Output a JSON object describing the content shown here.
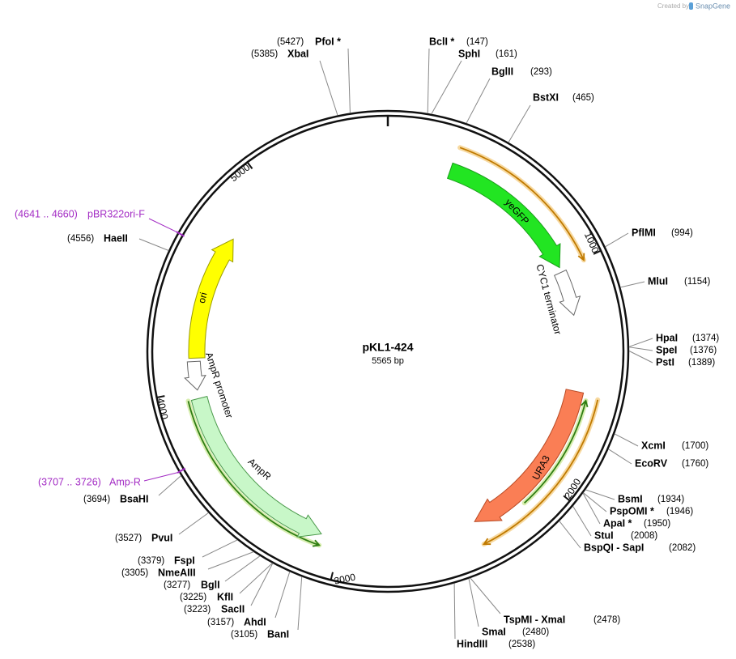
{
  "header": {
    "credit": "Created by",
    "brand": "SnapGene"
  },
  "plasmid": {
    "name": "pKL1-424",
    "length": "5565 bp"
  },
  "ruler": [
    "1000",
    "2000",
    "3000",
    "4000",
    "5000"
  ],
  "features": [
    {
      "label": "yeGFP"
    },
    {
      "label": "CYC1 terminator"
    },
    {
      "label": "URA3"
    },
    {
      "label": "AmpR"
    },
    {
      "label": "AmpR promoter"
    },
    {
      "label": "ori"
    }
  ],
  "primers": [
    {
      "range": "(4641 .. 4660)",
      "name": "pBR322ori-F"
    },
    {
      "range": "(3707 .. 3726)",
      "name": "Amp-R"
    }
  ],
  "enzymes": [
    {
      "name": "PfoI *",
      "site": "(5427)"
    },
    {
      "name": "XbaI",
      "site": "(5385)"
    },
    {
      "name": "BclI *",
      "site": "(147)"
    },
    {
      "name": "SphI",
      "site": "(161)"
    },
    {
      "name": "BglII",
      "site": "(293)"
    },
    {
      "name": "BstXI",
      "site": "(465)"
    },
    {
      "name": "PflMI",
      "site": "(994)"
    },
    {
      "name": "MluI",
      "site": "(1154)"
    },
    {
      "name": "HpaI",
      "site": "(1374)"
    },
    {
      "name": "SpeI",
      "site": "(1376)"
    },
    {
      "name": "PstI",
      "site": "(1389)"
    },
    {
      "name": "XcmI",
      "site": "(1700)"
    },
    {
      "name": "EcoRV",
      "site": "(1760)"
    },
    {
      "name": "BsmI",
      "site": "(1934)"
    },
    {
      "name": "PspOMI *",
      "site": "(1946)"
    },
    {
      "name": "ApaI *",
      "site": "(1950)"
    },
    {
      "name": "StuI",
      "site": "(2008)"
    },
    {
      "name": "BspQI - SapI",
      "site": "(2082)"
    },
    {
      "name": "TspMI - XmaI",
      "site": "(2478)"
    },
    {
      "name": "SmaI",
      "site": "(2480)"
    },
    {
      "name": "HindIII",
      "site": "(2538)"
    },
    {
      "name": "HaeII",
      "site": "(4556)"
    },
    {
      "name": "BsaHI",
      "site": "(3694)"
    },
    {
      "name": "PvuI",
      "site": "(3527)"
    },
    {
      "name": "FspI",
      "site": "(3379)"
    },
    {
      "name": "NmeAIII",
      "site": "(3305)"
    },
    {
      "name": "BglI",
      "site": "(3277)"
    },
    {
      "name": "KflI",
      "site": "(3225)"
    },
    {
      "name": "SacII",
      "site": "(3223)"
    },
    {
      "name": "AhdI",
      "site": "(3157)"
    },
    {
      "name": "BanI",
      "site": "(3105)"
    }
  ]
}
